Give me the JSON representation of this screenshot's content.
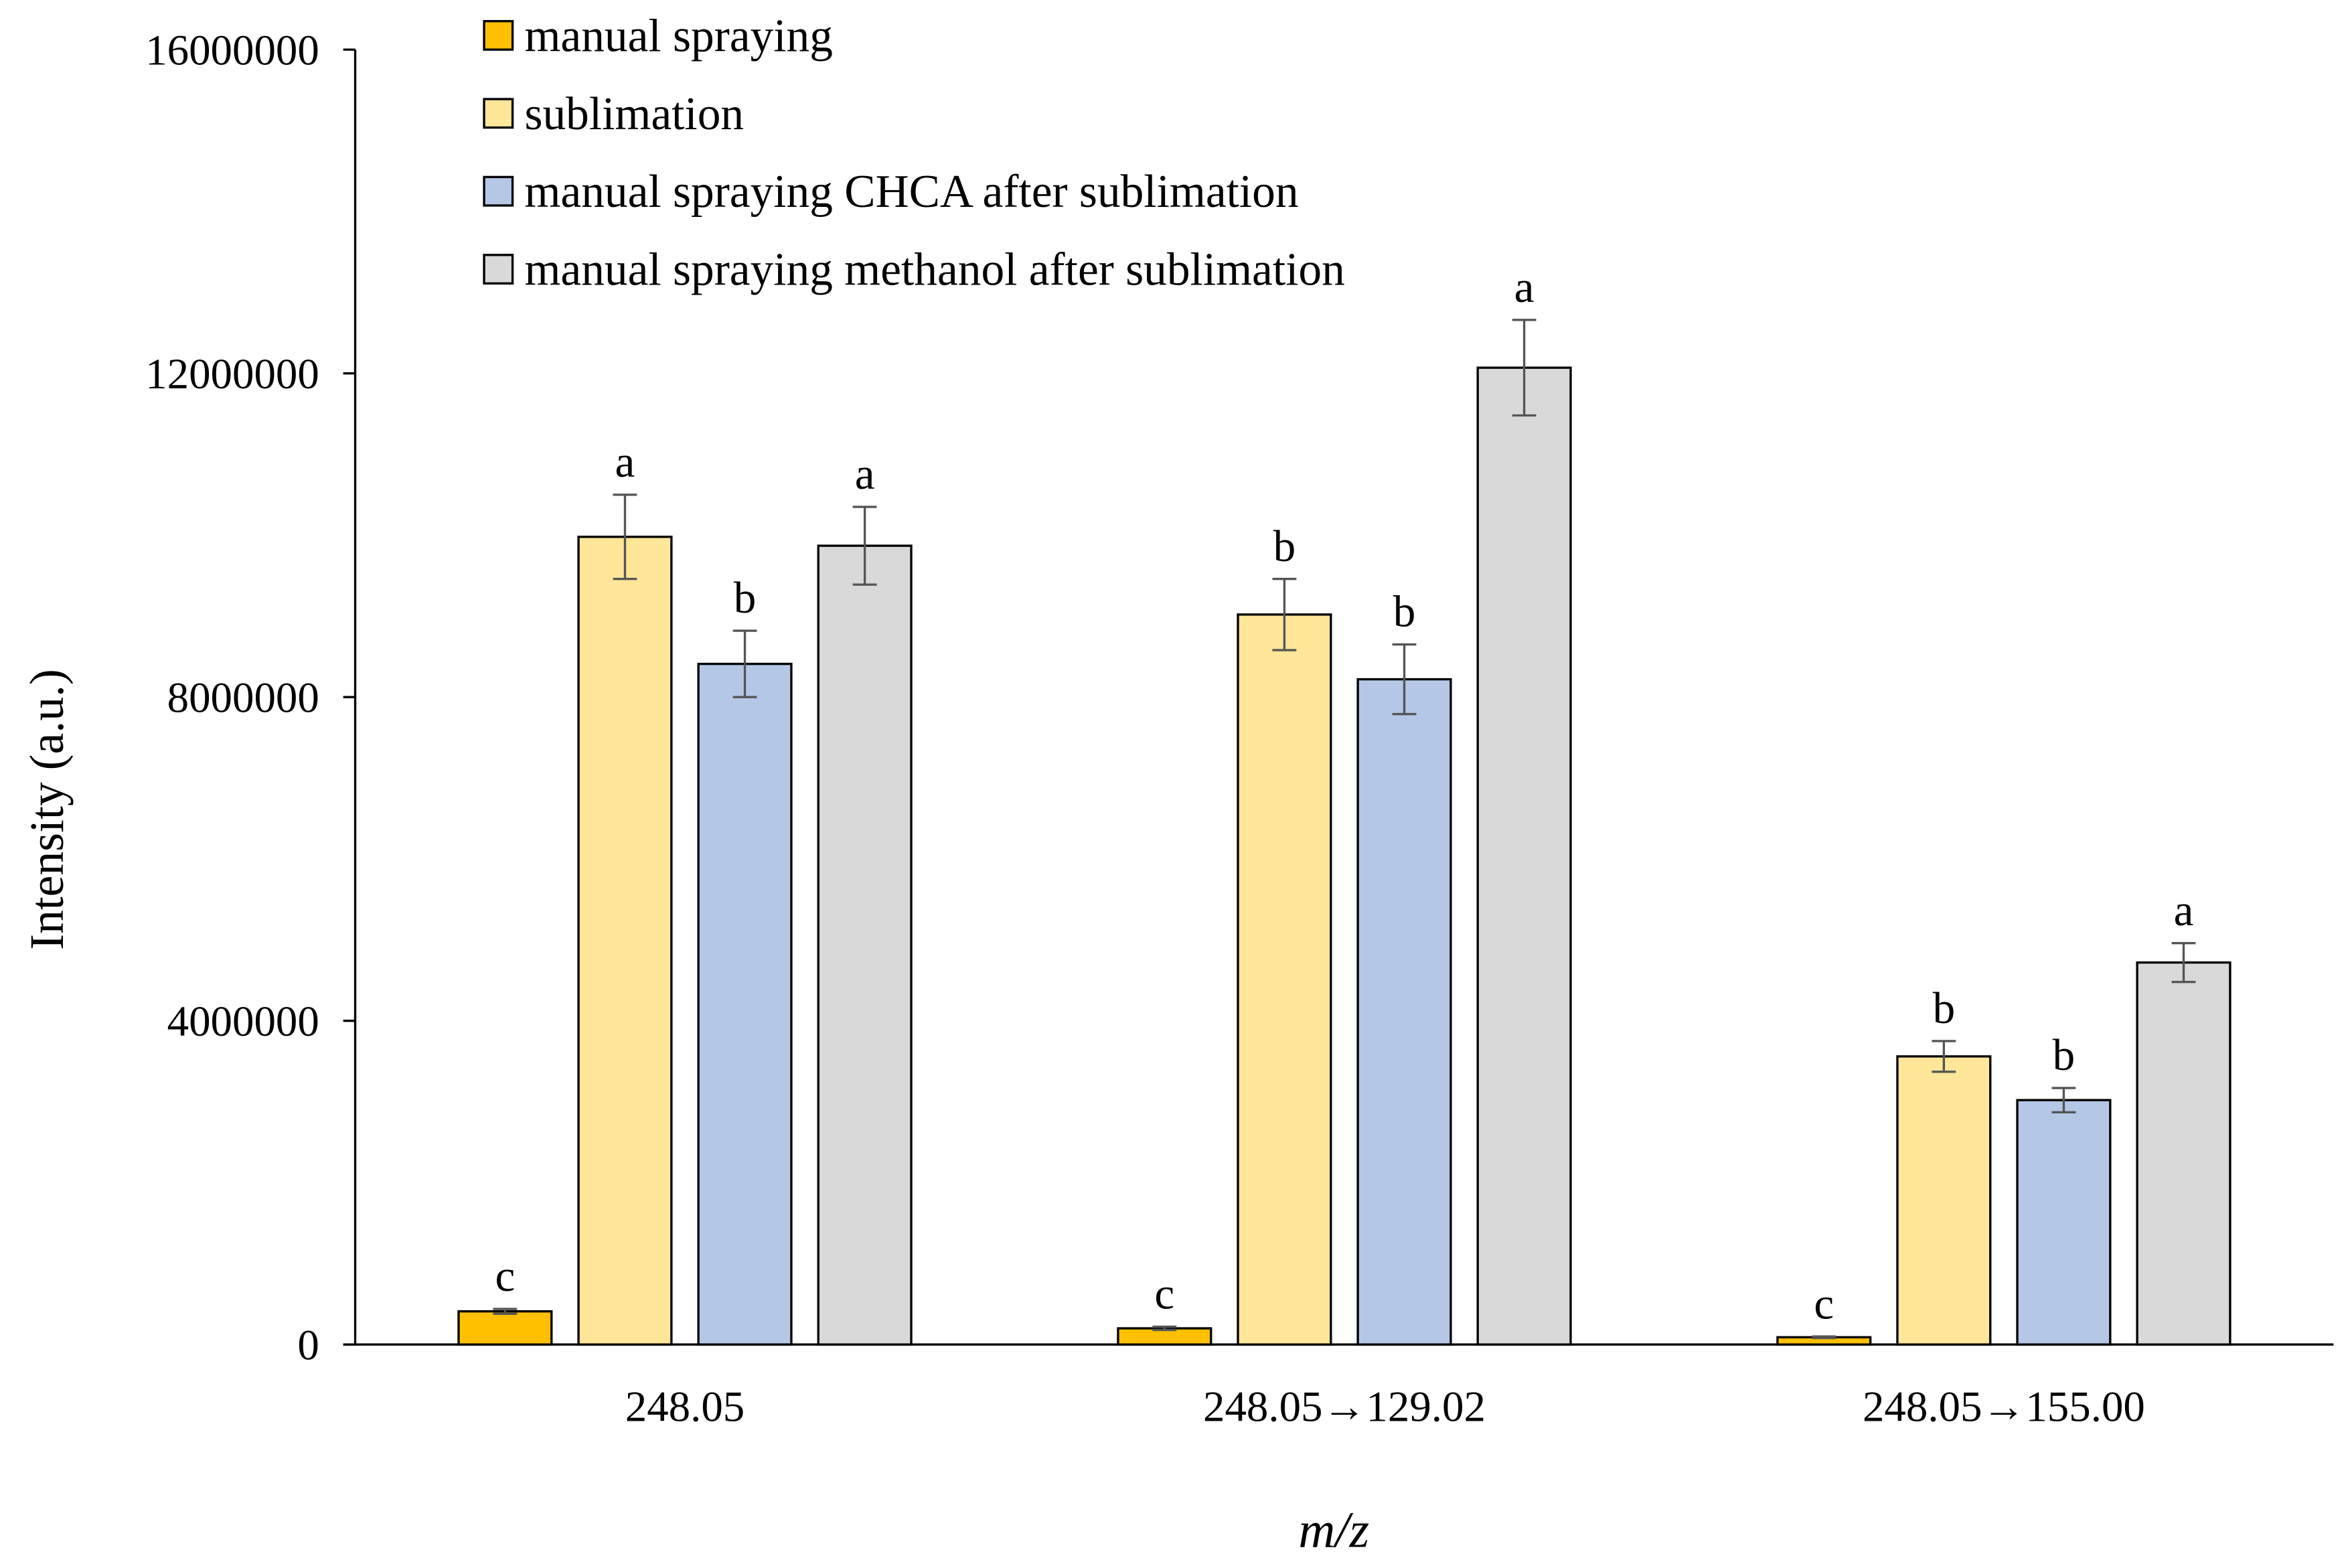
{
  "chart_data": {
    "type": "bar",
    "title": "",
    "xlabel": "m/z",
    "ylabel": "Intensity (a.u.)",
    "ylim": [
      0,
      16000000
    ],
    "yticks": [
      0,
      4000000,
      8000000,
      12000000,
      16000000
    ],
    "ytick_labels": [
      "0",
      "4000000",
      "8000000",
      "12000000",
      "16000000"
    ],
    "categories": [
      "248.05",
      "248.05→129.02",
      "248.05→155.00"
    ],
    "legend_position": "top-left",
    "grid": false,
    "series": [
      {
        "name": "manual spraying",
        "color": "#FFC000",
        "values": [
          410000,
          200000,
          90000
        ],
        "errors": [
          30000,
          20000,
          10000
        ],
        "letters": [
          "c",
          "c",
          "c"
        ]
      },
      {
        "name": "sublimation",
        "color": "#FFE699",
        "values": [
          9980000,
          9020000,
          3560000
        ],
        "errors": [
          520000,
          440000,
          190000
        ],
        "letters": [
          "a",
          "b",
          "b"
        ]
      },
      {
        "name": "manual spraying CHCA after sublimation",
        "color": "#B4C7E7",
        "values": [
          8410000,
          8220000,
          3020000
        ],
        "errors": [
          410000,
          430000,
          150000
        ],
        "letters": [
          "b",
          "b",
          "b"
        ]
      },
      {
        "name": "manual spraying methanol after sublimation",
        "color": "#D9D9D9",
        "values": [
          9870000,
          12070000,
          4720000
        ],
        "errors": [
          480000,
          590000,
          240000
        ],
        "letters": [
          "a",
          "a",
          "a"
        ]
      }
    ]
  }
}
